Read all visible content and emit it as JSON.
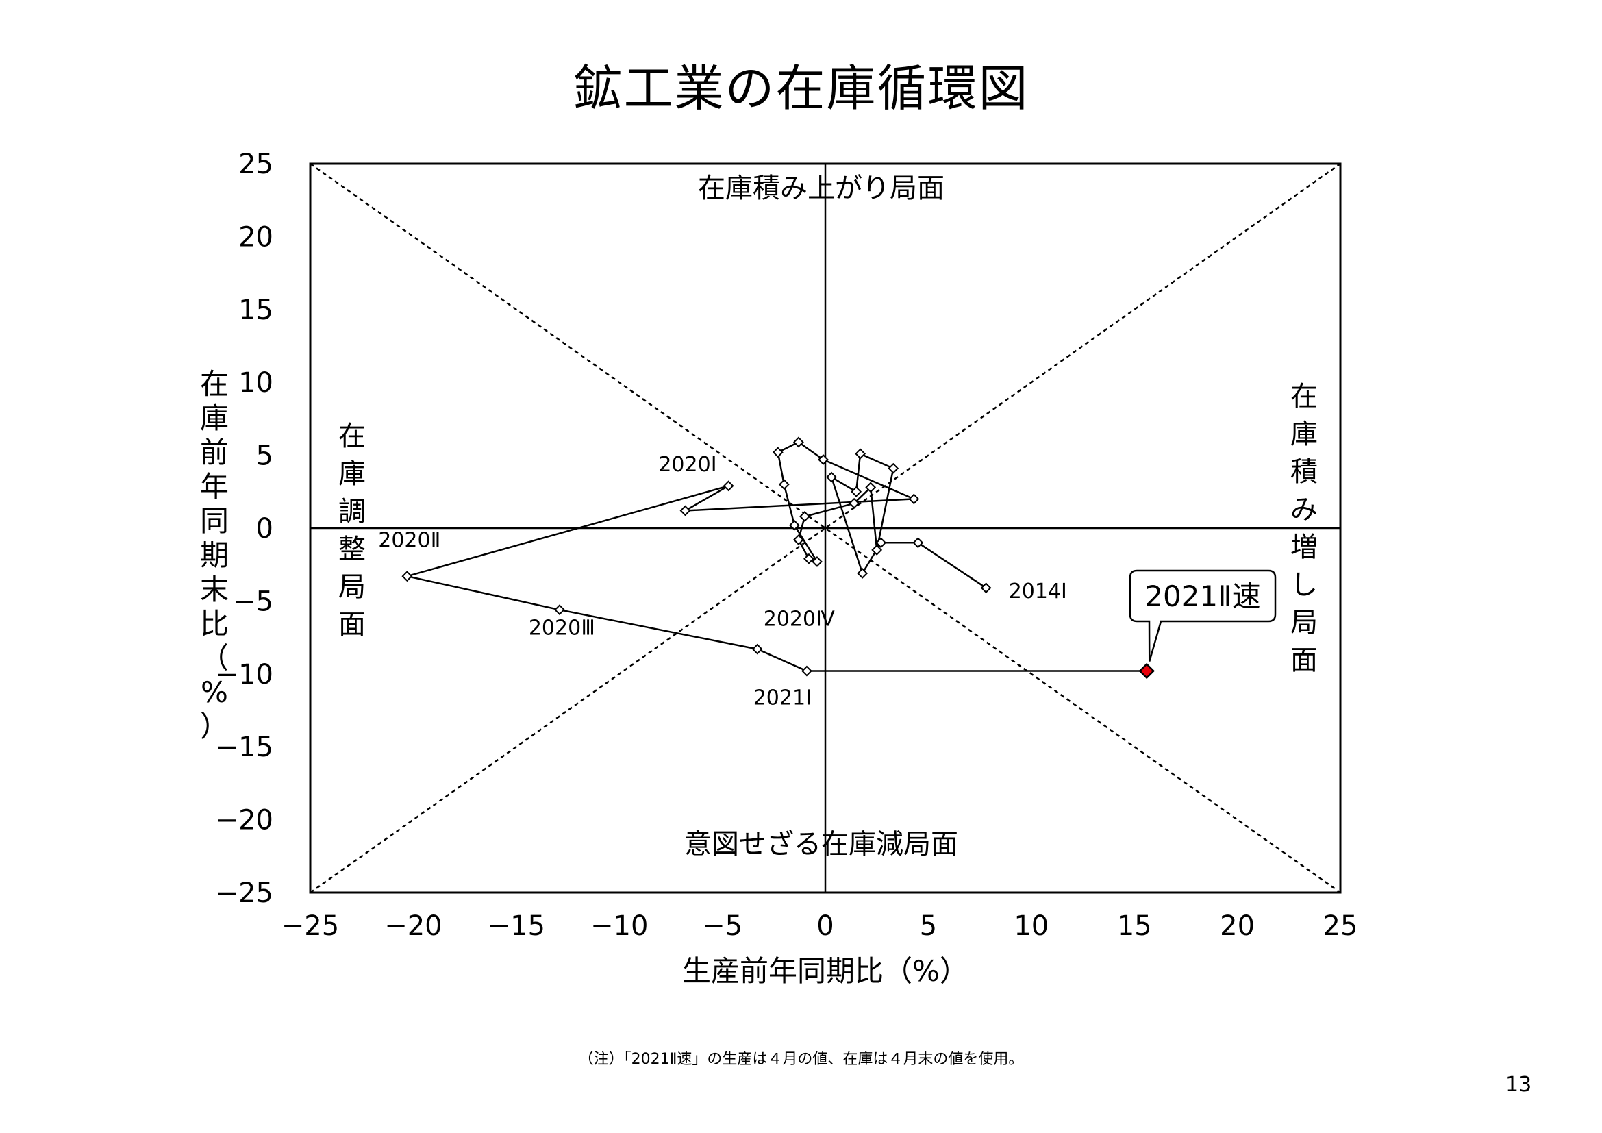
{
  "page": {
    "title": "鉱工業の在庫循環図",
    "footnote": "（注）「2021Ⅱ速」の生産は４月の値、在庫は４月末の値を使用。",
    "page_number": "13"
  },
  "colors": {
    "line": "#000000",
    "marker_fill": "#ffffff",
    "highlight": "#e8000a"
  },
  "chart_data": {
    "type": "scatter",
    "title": "鉱工業の在庫循環図",
    "xlabel": "生産前年同期比（%）",
    "ylabel": "在庫前年同期末比（%）",
    "xlim": [
      -25,
      25
    ],
    "ylim": [
      -25,
      25
    ],
    "xticks": [
      -25,
      -20,
      -15,
      -10,
      -5,
      0,
      5,
      10,
      15,
      20,
      25
    ],
    "yticks": [
      -25,
      -20,
      -15,
      -10,
      -5,
      0,
      5,
      10,
      15,
      20,
      25
    ],
    "xtick_labels": [
      "−25",
      "−20",
      "−15",
      "−10",
      "−5",
      "0",
      "5",
      "10",
      "15",
      "20",
      "25"
    ],
    "ytick_labels": [
      "−25",
      "−20",
      "−15",
      "−10",
      "−5",
      "0",
      "5",
      "10",
      "15",
      "20",
      "25"
    ],
    "grid": false,
    "reference_lines": [
      "y = x",
      "y = -x"
    ],
    "connected": true,
    "series": [
      {
        "points": [
          {
            "x": 7.8,
            "y": -4.1
          },
          {
            "x": 4.5,
            "y": -1.0
          },
          {
            "x": 2.7,
            "y": -1.0
          },
          {
            "x": 1.8,
            "y": -3.1
          },
          {
            "x": 0.3,
            "y": 3.5
          },
          {
            "x": 1.5,
            "y": 2.5
          },
          {
            "x": 1.7,
            "y": 5.1
          },
          {
            "x": 3.3,
            "y": 4.1
          },
          {
            "x": 2.5,
            "y": -1.5
          },
          {
            "x": 2.2,
            "y": 2.8
          },
          {
            "x": 1.4,
            "y": 1.7
          },
          {
            "x": -1.0,
            "y": 0.8
          },
          {
            "x": -1.3,
            "y": -0.8
          },
          {
            "x": -0.8,
            "y": -2.1
          },
          {
            "x": -0.4,
            "y": -2.3
          },
          {
            "x": -1.5,
            "y": 0.2
          },
          {
            "x": -2.0,
            "y": 3.0
          },
          {
            "x": -2.3,
            "y": 5.2
          },
          {
            "x": -1.3,
            "y": 5.9
          },
          {
            "x": -0.1,
            "y": 4.7
          },
          {
            "x": 4.3,
            "y": 2.0
          },
          {
            "x": -6.8,
            "y": 1.2
          },
          {
            "x": -4.7,
            "y": 2.9
          },
          {
            "x": -20.3,
            "y": -3.3
          },
          {
            "x": -12.9,
            "y": -5.6
          },
          {
            "x": -3.3,
            "y": -8.3
          },
          {
            "x": -0.9,
            "y": -9.8
          },
          {
            "x": 15.6,
            "y": -9.8
          }
        ],
        "highlight_last": true
      }
    ],
    "point_labels": [
      {
        "text": "2014Ⅰ",
        "x": 8.9,
        "y": -4.8
      },
      {
        "text": "2020Ⅰ",
        "x": -8.1,
        "y": 3.9
      },
      {
        "text": "2020Ⅱ",
        "x": -21.7,
        "y": -1.3
      },
      {
        "text": "2020Ⅲ",
        "x": -14.4,
        "y": -7.3
      },
      {
        "text": "2020Ⅳ",
        "x": -3.0,
        "y": -6.7
      },
      {
        "text": "2021Ⅰ",
        "x": -3.5,
        "y": -12.1
      }
    ],
    "callout": {
      "text": "2021Ⅱ速",
      "target_x": 15.6,
      "target_y": -9.8
    },
    "phase_labels": [
      {
        "text": "在庫積み上がり局面",
        "orientation": "horizontal",
        "region": "top"
      },
      {
        "text": "意図せざる在庫減局面",
        "orientation": "horizontal",
        "region": "bottom"
      },
      {
        "text": "在庫調整局面",
        "orientation": "vertical",
        "region": "left"
      },
      {
        "text": "在庫積み増し局面",
        "orientation": "vertical",
        "region": "right"
      }
    ]
  }
}
